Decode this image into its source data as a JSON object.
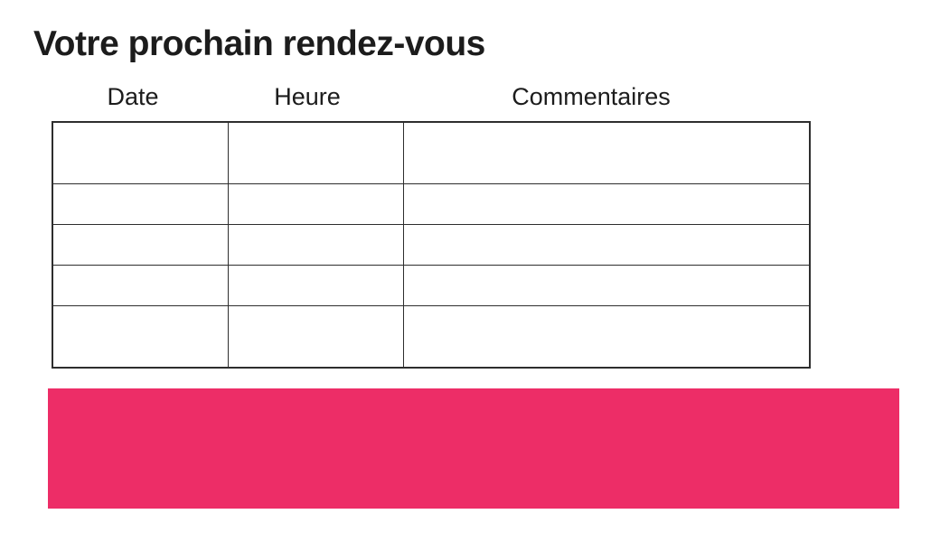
{
  "page": {
    "title": "Votre prochain rendez-vous"
  },
  "table": {
    "columns": [
      "Date",
      "Heure",
      "Commentaires"
    ],
    "rows": [
      [
        "",
        "",
        ""
      ],
      [
        "",
        "",
        ""
      ],
      [
        "",
        "",
        ""
      ],
      [
        "",
        "",
        ""
      ],
      [
        "",
        "",
        ""
      ]
    ]
  },
  "banner": {
    "label": ""
  },
  "colors": {
    "accent": "#ED2D67",
    "border": "#2e2e2e",
    "text": "#1c1c1c"
  }
}
